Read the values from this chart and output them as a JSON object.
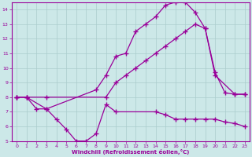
{
  "xlabel": "Windchill (Refroidissement éolien,°C)",
  "bg_color": "#cce8e8",
  "grid_color": "#aacccc",
  "line_color": "#990099",
  "xlim": [
    -0.5,
    23.5
  ],
  "ylim": [
    5,
    14.5
  ],
  "xticks": [
    0,
    1,
    2,
    3,
    4,
    5,
    6,
    7,
    8,
    9,
    10,
    11,
    12,
    13,
    14,
    15,
    16,
    17,
    18,
    19,
    20,
    21,
    22,
    23
  ],
  "yticks": [
    5,
    6,
    7,
    8,
    9,
    10,
    11,
    12,
    13,
    14
  ],
  "line1_x": [
    0,
    1,
    3,
    9,
    10,
    11,
    12,
    13,
    14,
    15,
    16,
    17,
    18,
    19,
    20,
    22,
    23
  ],
  "line1_y": [
    8,
    8,
    8,
    8,
    9,
    9.5,
    10,
    10.5,
    11,
    11.5,
    12,
    12.5,
    13,
    12.7,
    9.5,
    8.2,
    8.2
  ],
  "line2_x": [
    0,
    1,
    2,
    3,
    4,
    5,
    6,
    7,
    8,
    9,
    10,
    14,
    15,
    16,
    17,
    18,
    19,
    20,
    21,
    22,
    23
  ],
  "line2_y": [
    8,
    8,
    7.2,
    7.2,
    6.5,
    5.8,
    5.0,
    5.0,
    5.5,
    7.5,
    7.0,
    7.0,
    6.8,
    6.5,
    6.5,
    6.5,
    6.5,
    6.5,
    6.3,
    6.2,
    6.0
  ],
  "line3_x": [
    0,
    1,
    3,
    8,
    9,
    10,
    11,
    12,
    13,
    14,
    15,
    16,
    17,
    18,
    19,
    20,
    21,
    22,
    23
  ],
  "line3_y": [
    8,
    8,
    7.2,
    8.5,
    9.5,
    10.8,
    11.0,
    12.5,
    13.0,
    13.5,
    14.3,
    14.5,
    14.5,
    13.8,
    12.7,
    9.7,
    8.3,
    8.2,
    8.2
  ]
}
